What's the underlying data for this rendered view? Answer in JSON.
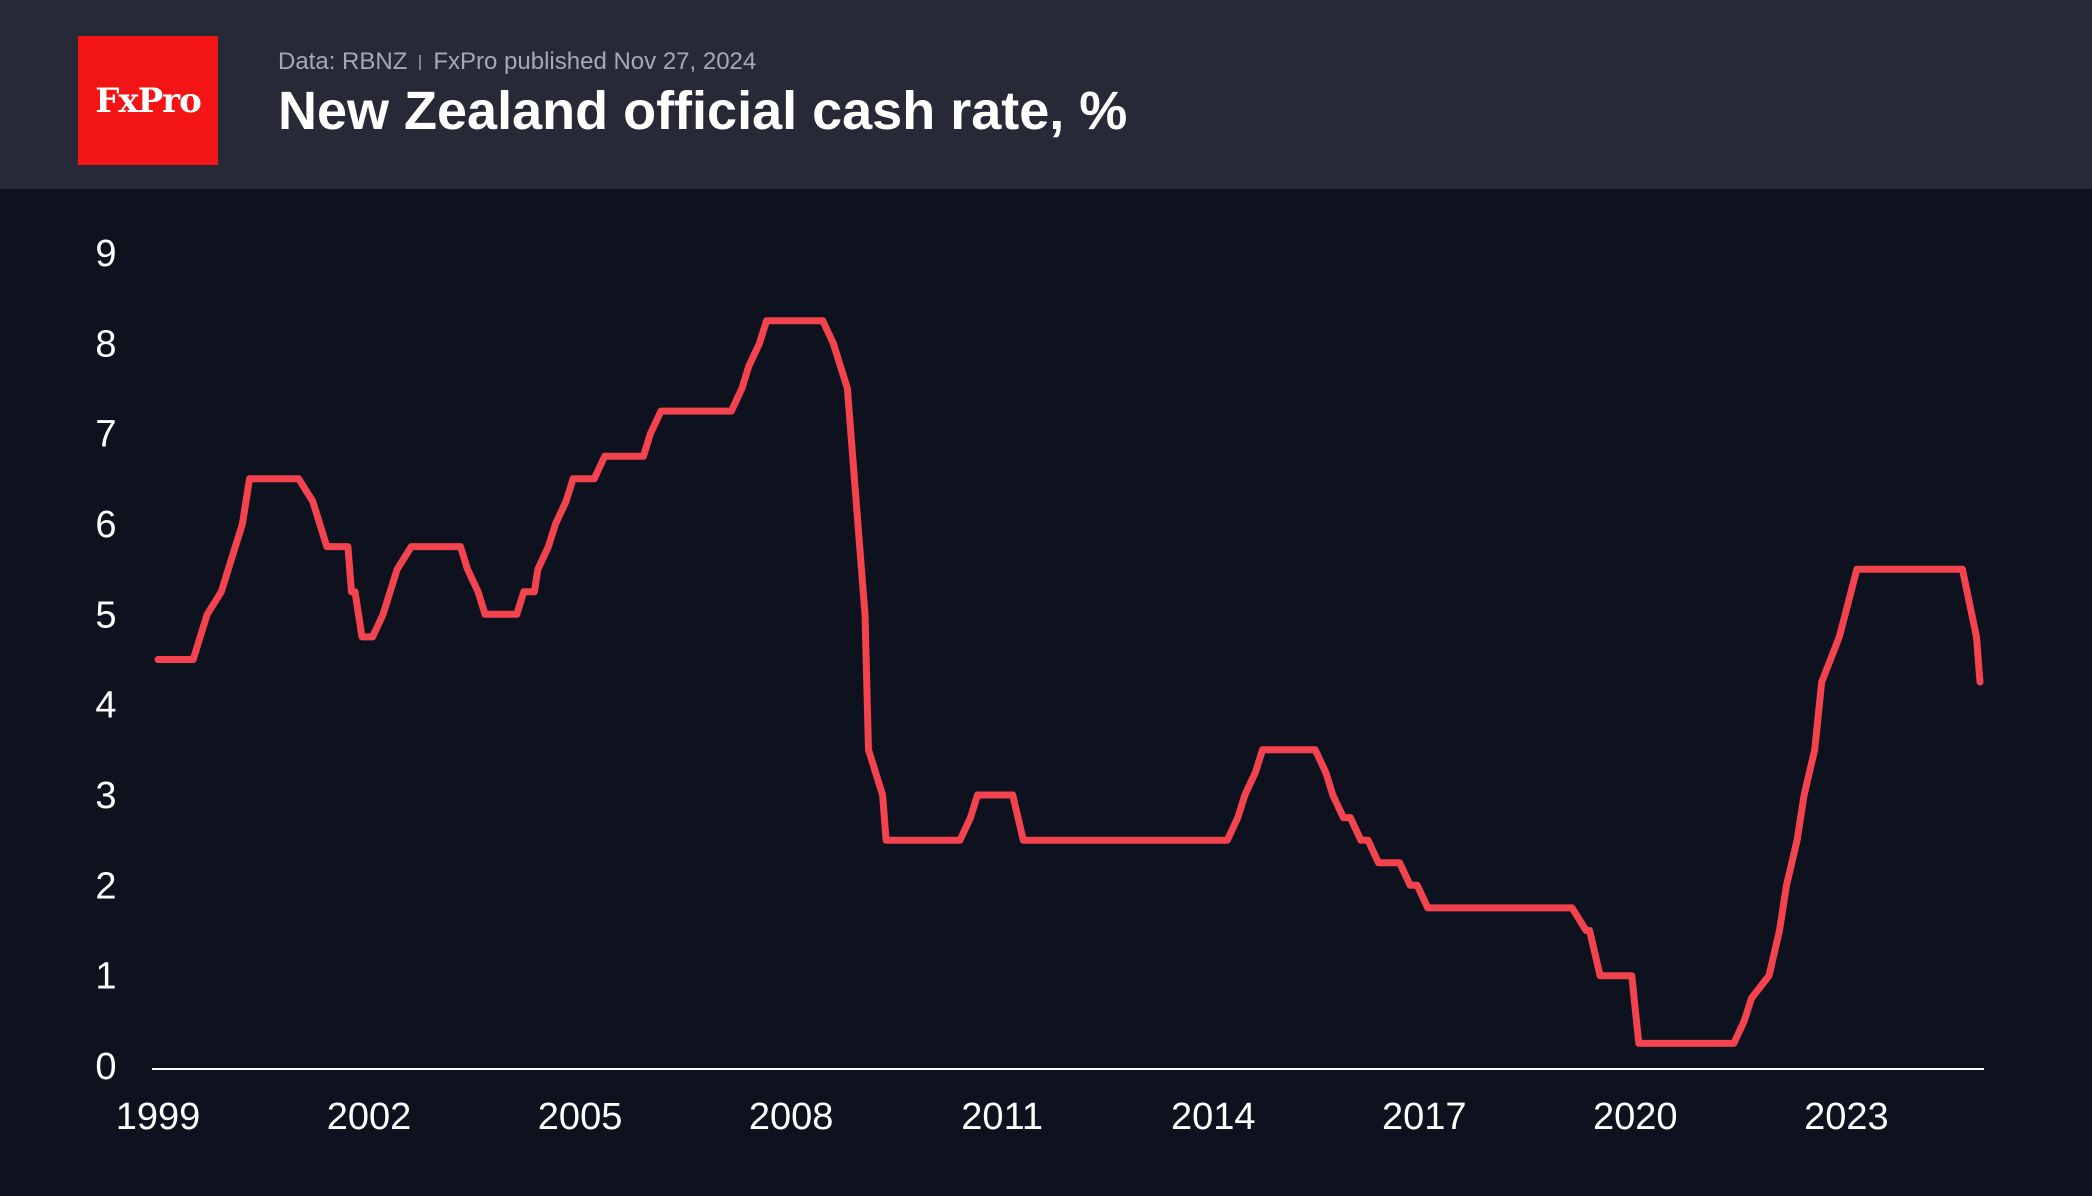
{
  "header": {
    "logo": "FxPro",
    "source": "Data: RBNZ",
    "published": "FxPro published Nov 27, 2024",
    "title": "New Zealand official cash rate, %"
  },
  "colors": {
    "line": "#f2434f",
    "background": "#0e121e",
    "header": "#272a36",
    "logo": "#f31515"
  },
  "chart_data": {
    "type": "line",
    "title": "New Zealand official cash rate, %",
    "xlabel": "",
    "ylabel": "",
    "xlim": [
      1999.0,
      2024.9
    ],
    "ylim": [
      0,
      9
    ],
    "y_ticks": [
      0,
      1,
      2,
      3,
      4,
      5,
      6,
      7,
      8,
      9
    ],
    "x_ticks": [
      1999,
      2002,
      2005,
      2008,
      2011,
      2014,
      2017,
      2020,
      2023
    ],
    "series": [
      {
        "name": "Official cash rate",
        "points": [
          [
            1999.0,
            4.5
          ],
          [
            1999.5,
            4.5
          ],
          [
            1999.6,
            4.75
          ],
          [
            1999.7,
            5.0
          ],
          [
            1999.9,
            5.25
          ],
          [
            2000.0,
            5.5
          ],
          [
            2000.2,
            6.0
          ],
          [
            2000.3,
            6.5
          ],
          [
            2001.0,
            6.5
          ],
          [
            2001.2,
            6.25
          ],
          [
            2001.3,
            6.0
          ],
          [
            2001.4,
            5.75
          ],
          [
            2001.7,
            5.75
          ],
          [
            2001.75,
            5.25
          ],
          [
            2001.8,
            5.25
          ],
          [
            2001.9,
            4.75
          ],
          [
            2002.05,
            4.75
          ],
          [
            2002.2,
            5.0
          ],
          [
            2002.3,
            5.25
          ],
          [
            2002.4,
            5.5
          ],
          [
            2002.6,
            5.75
          ],
          [
            2003.3,
            5.75
          ],
          [
            2003.4,
            5.5
          ],
          [
            2003.55,
            5.25
          ],
          [
            2003.65,
            5.0
          ],
          [
            2004.1,
            5.0
          ],
          [
            2004.2,
            5.25
          ],
          [
            2004.35,
            5.25
          ],
          [
            2004.4,
            5.5
          ],
          [
            2004.55,
            5.75
          ],
          [
            2004.65,
            6.0
          ],
          [
            2004.8,
            6.25
          ],
          [
            2004.9,
            6.5
          ],
          [
            2005.2,
            6.5
          ],
          [
            2005.35,
            6.75
          ],
          [
            2005.9,
            6.75
          ],
          [
            2006.0,
            7.0
          ],
          [
            2006.15,
            7.25
          ],
          [
            2007.15,
            7.25
          ],
          [
            2007.3,
            7.5
          ],
          [
            2007.4,
            7.75
          ],
          [
            2007.55,
            8.0
          ],
          [
            2007.65,
            8.25
          ],
          [
            2008.45,
            8.25
          ],
          [
            2008.6,
            8.0
          ],
          [
            2008.8,
            7.5
          ],
          [
            2008.9,
            6.5
          ],
          [
            2009.05,
            5.0
          ],
          [
            2009.1,
            3.5
          ],
          [
            2009.3,
            3.0
          ],
          [
            2009.35,
            2.5
          ],
          [
            2010.4,
            2.5
          ],
          [
            2010.55,
            2.75
          ],
          [
            2010.65,
            3.0
          ],
          [
            2011.15,
            3.0
          ],
          [
            2011.3,
            2.5
          ],
          [
            2014.2,
            2.5
          ],
          [
            2014.35,
            2.75
          ],
          [
            2014.45,
            3.0
          ],
          [
            2014.6,
            3.25
          ],
          [
            2014.7,
            3.5
          ],
          [
            2015.45,
            3.5
          ],
          [
            2015.6,
            3.25
          ],
          [
            2015.7,
            3.0
          ],
          [
            2015.85,
            2.75
          ],
          [
            2015.95,
            2.75
          ],
          [
            2016.1,
            2.5
          ],
          [
            2016.2,
            2.5
          ],
          [
            2016.35,
            2.25
          ],
          [
            2016.65,
            2.25
          ],
          [
            2016.8,
            2.0
          ],
          [
            2016.9,
            2.0
          ],
          [
            2017.05,
            1.75
          ],
          [
            2019.1,
            1.75
          ],
          [
            2019.3,
            1.5
          ],
          [
            2019.35,
            1.5
          ],
          [
            2019.5,
            1.0
          ],
          [
            2019.95,
            1.0
          ],
          [
            2020.05,
            0.25
          ],
          [
            2021.4,
            0.25
          ],
          [
            2021.55,
            0.5
          ],
          [
            2021.65,
            0.75
          ],
          [
            2021.9,
            1.0
          ],
          [
            2022.05,
            1.5
          ],
          [
            2022.15,
            2.0
          ],
          [
            2022.3,
            2.5
          ],
          [
            2022.4,
            3.0
          ],
          [
            2022.55,
            3.5
          ],
          [
            2022.65,
            4.25
          ],
          [
            2022.9,
            4.75
          ],
          [
            2023.15,
            5.5
          ],
          [
            2024.65,
            5.5
          ],
          [
            2024.85,
            4.75
          ],
          [
            2024.9,
            4.25
          ]
        ]
      }
    ]
  }
}
